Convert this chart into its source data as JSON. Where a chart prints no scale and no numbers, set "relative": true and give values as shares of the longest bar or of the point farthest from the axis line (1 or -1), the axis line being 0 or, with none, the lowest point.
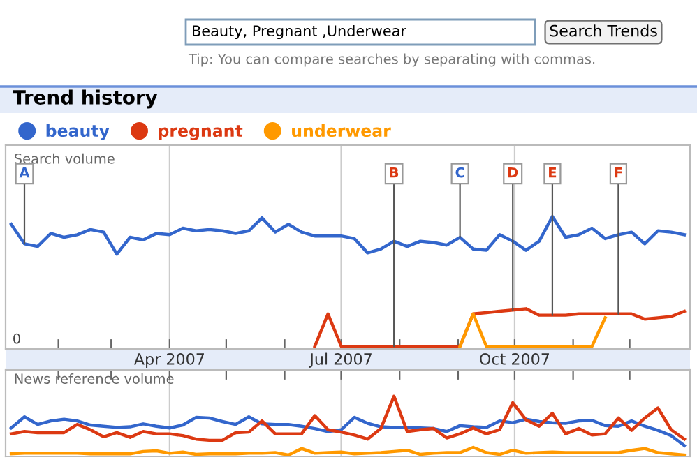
{
  "chart_data": [
    {
      "type": "line",
      "title": "Trend history",
      "ylabel": "Search volume",
      "relative": true,
      "legend": "top left",
      "grid": "x",
      "tick_labels": "x",
      "marker": "none",
      "line_style": "solid",
      "xlim": [
        "2007-01-04",
        "2008-01-02"
      ],
      "xticks": [
        {
          "value": "2007-02-01",
          "label": null
        },
        {
          "value": "2007-03-01",
          "label": null
        },
        {
          "value": "2007-04-01",
          "label": "Apr 2007"
        },
        {
          "value": "2007-05-01",
          "label": null
        },
        {
          "value": "2007-06-01",
          "label": null
        },
        {
          "value": "2007-07-01",
          "label": "Jul 2007"
        },
        {
          "value": "2007-08-01",
          "label": null
        },
        {
          "value": "2007-09-01",
          "label": null
        },
        {
          "value": "2007-10-01",
          "label": "Oct 2007"
        },
        {
          "value": "2007-11-01",
          "label": null
        },
        {
          "value": "2007-12-01",
          "label": null
        }
      ],
      "x": [
        "2007-01-07",
        "2007-01-14",
        "2007-01-21",
        "2007-01-28",
        "2007-02-04",
        "2007-02-11",
        "2007-02-18",
        "2007-02-25",
        "2007-03-04",
        "2007-03-11",
        "2007-03-18",
        "2007-03-25",
        "2007-04-01",
        "2007-04-08",
        "2007-04-15",
        "2007-04-22",
        "2007-04-29",
        "2007-05-06",
        "2007-05-13",
        "2007-05-20",
        "2007-05-27",
        "2007-06-03",
        "2007-06-10",
        "2007-06-17",
        "2007-06-24",
        "2007-07-01",
        "2007-07-08",
        "2007-07-15",
        "2007-07-22",
        "2007-07-29",
        "2007-08-05",
        "2007-08-12",
        "2007-08-19",
        "2007-08-26",
        "2007-09-02",
        "2007-09-09",
        "2007-09-16",
        "2007-09-23",
        "2007-09-30",
        "2007-10-07",
        "2007-10-14",
        "2007-10-21",
        "2007-10-28",
        "2007-11-04",
        "2007-11-11",
        "2007-11-18",
        "2007-11-25",
        "2007-12-02",
        "2007-12-09",
        "2007-12-16",
        "2007-12-23",
        "2007-12-30"
      ],
      "series": [
        {
          "name": "beauty",
          "color": "#3366cc",
          "values": [
            0.94,
            0.79,
            0.77,
            0.87,
            0.84,
            0.86,
            0.9,
            0.88,
            0.71,
            0.84,
            0.82,
            0.87,
            0.86,
            0.91,
            0.89,
            0.9,
            0.89,
            0.87,
            0.89,
            0.99,
            0.88,
            0.94,
            0.88,
            0.85,
            0.85,
            0.85,
            0.83,
            0.72,
            0.75,
            0.81,
            0.77,
            0.81,
            0.8,
            0.78,
            0.84,
            0.75,
            0.74,
            0.86,
            0.81,
            0.74,
            0.81,
            1.0,
            0.84,
            0.86,
            0.91,
            0.83,
            0.86,
            0.88,
            0.79,
            0.89,
            0.88,
            0.86
          ]
        },
        {
          "name": "pregnant",
          "color": "#dc3912",
          "values": [
            null,
            null,
            null,
            null,
            null,
            null,
            null,
            null,
            null,
            null,
            null,
            null,
            null,
            null,
            null,
            null,
            null,
            null,
            null,
            null,
            null,
            null,
            null,
            0,
            0.25,
            0,
            0,
            0,
            0,
            0,
            0,
            0,
            0,
            0,
            0,
            0.25,
            0.26,
            0.27,
            0.28,
            0.29,
            0.24,
            0.24,
            0.24,
            0.25,
            0.25,
            0.25,
            0.25,
            0.25,
            0.21,
            0.22,
            0.23,
            0.27
          ]
        },
        {
          "name": "underwear",
          "color": "#ff9900",
          "values": [
            null,
            null,
            null,
            null,
            null,
            null,
            null,
            null,
            null,
            null,
            null,
            null,
            null,
            null,
            null,
            null,
            null,
            null,
            null,
            null,
            null,
            null,
            null,
            null,
            null,
            null,
            null,
            null,
            null,
            null,
            null,
            null,
            null,
            null,
            0,
            0.25,
            0,
            0,
            0,
            0,
            0,
            0,
            0,
            0,
            0,
            0.22,
            null,
            null,
            null,
            null,
            null,
            null
          ]
        }
      ],
      "annotations": [
        "Beauty, Pregnant ,Underwear",
        "Search Trends",
        "Tip: You can compare searches by separating with commas.",
        "0",
        {
          "text": "A",
          "x": "2007-01-14",
          "y": 0.79
        },
        {
          "text": "B",
          "x": "2007-07-29",
          "y": 0
        },
        {
          "text": "C",
          "x": "2007-09-02",
          "y": 0.84
        },
        {
          "text": "D",
          "x": "2007-09-30",
          "y": 0.28
        },
        {
          "text": "E",
          "x": "2007-10-21",
          "y": 0.24
        },
        {
          "text": "F",
          "x": "2007-11-25",
          "y": 0.25
        }
      ]
    },
    {
      "type": "line",
      "ylabel": "News reference volume",
      "relative": true,
      "grid": "x",
      "tick_labels": false,
      "marker": "none",
      "line_style": "solid",
      "categories": [
        null,
        null,
        null,
        null,
        null,
        null,
        null,
        null,
        null,
        null,
        null,
        null,
        null,
        null,
        null,
        null,
        null,
        null,
        null,
        null,
        null,
        null,
        null,
        null,
        null,
        null,
        null,
        null,
        null,
        null,
        null,
        null,
        null,
        null,
        null,
        null,
        null,
        null,
        null,
        null,
        null,
        null,
        null,
        null,
        null,
        null,
        null,
        null,
        null,
        null,
        null,
        null
      ],
      "series": [
        {
          "color": "#3366cc",
          "values": [
            0.46,
            0.65,
            0.52,
            0.58,
            0.61,
            0.58,
            0.51,
            0.49,
            0.47,
            0.48,
            0.53,
            0.49,
            0.46,
            0.51,
            0.64,
            0.63,
            0.57,
            0.52,
            0.65,
            0.53,
            0.52,
            0.52,
            0.49,
            0.45,
            0.4,
            0.43,
            0.64,
            0.54,
            0.48,
            0.47,
            0.47,
            0.46,
            0.45,
            0.4,
            0.5,
            0.48,
            0.47,
            0.58,
            0.55,
            0.61,
            0.57,
            0.55,
            0.54,
            0.58,
            0.59,
            0.5,
            0.49,
            0.58,
            0.49,
            0.42,
            0.33,
            0.16
          ]
        },
        {
          "color": "#dc3912",
          "values": [
            0.36,
            0.4,
            0.38,
            0.38,
            0.38,
            0.52,
            0.43,
            0.31,
            0.38,
            0.3,
            0.4,
            0.36,
            0.36,
            0.33,
            0.27,
            0.25,
            0.25,
            0.38,
            0.39,
            0.58,
            0.36,
            0.36,
            0.36,
            0.67,
            0.43,
            0.39,
            0.34,
            0.27,
            0.45,
            1.0,
            0.4,
            0.43,
            0.45,
            0.29,
            0.36,
            0.46,
            0.36,
            0.43,
            0.89,
            0.6,
            0.49,
            0.71,
            0.36,
            0.45,
            0.34,
            0.36,
            0.63,
            0.42,
            0.63,
            0.8,
            0.43,
            0.27
          ]
        },
        {
          "color": "#ff9900",
          "values": [
            0.02,
            0.03,
            0.03,
            0.03,
            0.03,
            0.03,
            0.02,
            0.02,
            0.02,
            0.02,
            0.06,
            0.07,
            0.03,
            0.05,
            0.01,
            0.02,
            0.02,
            0.02,
            0.03,
            0.03,
            0.04,
            0,
            0.11,
            0.03,
            0.04,
            0.05,
            0.02,
            0.03,
            0.04,
            0.06,
            0.08,
            0.01,
            0.03,
            0.04,
            0.04,
            0.13,
            0.04,
            0.01,
            0.08,
            0.03,
            0.04,
            0.05,
            0.04,
            0.04,
            0.04,
            0.04,
            0.04,
            0.08,
            0.11,
            0.04,
            0.02,
            0
          ]
        }
      ]
    }
  ]
}
